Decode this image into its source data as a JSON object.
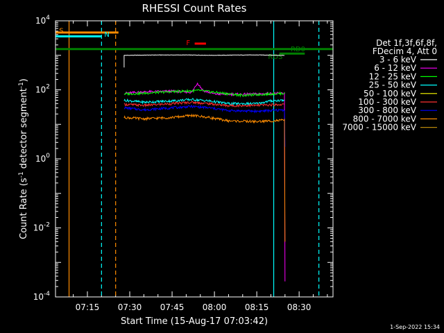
{
  "chart_data": {
    "type": "line",
    "title": "RHESSI Count Rates",
    "xlabel": "Start Time (15-Aug-17 07:03:42)",
    "ylabel_main": "Count Rate (s",
    "ylabel_sup1": "-1",
    "ylabel_mid": " detector segment",
    "ylabel_sup2": "-1",
    "ylabel_end": ")",
    "yscale": "log",
    "ylim_exp": [
      -4,
      4
    ],
    "xlim_min": [
      3.7,
      102
    ],
    "yticks": [
      {
        "exp": 4,
        "label": "10",
        "sup": "4"
      },
      {
        "exp": 2,
        "label": "10",
        "sup": "2"
      },
      {
        "exp": 0,
        "label": "10",
        "sup": "0"
      },
      {
        "exp": -2,
        "label": "10",
        "sup": "-2"
      },
      {
        "exp": -4,
        "label": "10",
        "sup": "-4"
      }
    ],
    "xticks": [
      {
        "min": 15,
        "label": "07:15"
      },
      {
        "min": 30,
        "label": "07:30"
      },
      {
        "min": 45,
        "label": "07:45"
      },
      {
        "min": 60,
        "label": "08:00"
      },
      {
        "min": 75,
        "label": "08:15"
      },
      {
        "min": 90,
        "label": "08:30"
      }
    ],
    "legend": {
      "header1": "Det 1f,3f,6f,8f,",
      "header2": "FDecim 4, Att 0",
      "position": "right"
    },
    "series": [
      {
        "name": "3 - 6 keV",
        "color": "#ffffff",
        "data": [
          [
            28,
            3.0
          ],
          [
            40,
            3.01
          ],
          [
            50,
            3.01
          ],
          [
            60,
            3.0
          ],
          [
            70,
            3.01
          ],
          [
            77,
            3.01
          ],
          [
            84,
            3.0
          ],
          [
            85,
            3.0
          ]
        ],
        "drop_exp": null
      },
      {
        "name": "6 - 12 keV",
        "color": "#ff00ff",
        "data": [
          [
            28,
            1.9
          ],
          [
            35,
            1.94
          ],
          [
            45,
            1.96
          ],
          [
            52,
            1.93
          ],
          [
            54,
            2.2
          ],
          [
            56,
            1.98
          ],
          [
            60,
            1.88
          ],
          [
            70,
            1.87
          ],
          [
            80,
            1.89
          ],
          [
            85,
            1.9
          ]
        ],
        "drop_exp": -3.55
      },
      {
        "name": "12 - 25 keV",
        "color": "#00ff00",
        "data": [
          [
            28,
            1.88
          ],
          [
            35,
            1.9
          ],
          [
            45,
            1.95
          ],
          [
            55,
            1.98
          ],
          [
            60,
            1.93
          ],
          [
            70,
            1.84
          ],
          [
            80,
            1.88
          ],
          [
            85,
            1.9
          ]
        ],
        "drop_exp": null
      },
      {
        "name": "25 - 50 keV",
        "color": "#00ffff",
        "data": [
          [
            28,
            1.7
          ],
          [
            35,
            1.64
          ],
          [
            45,
            1.68
          ],
          [
            52,
            1.72
          ],
          [
            58,
            1.68
          ],
          [
            65,
            1.6
          ],
          [
            75,
            1.6
          ],
          [
            80,
            1.68
          ],
          [
            85,
            1.7
          ]
        ],
        "drop_exp": null
      },
      {
        "name": "50 - 100 keV",
        "color": "#ffff00",
        "data": [],
        "drop_exp": null
      },
      {
        "name": "100 - 300 keV",
        "color": "#ff3030",
        "data": [
          [
            28,
            1.58
          ],
          [
            35,
            1.55
          ],
          [
            45,
            1.6
          ],
          [
            52,
            1.64
          ],
          [
            58,
            1.6
          ],
          [
            65,
            1.54
          ],
          [
            75,
            1.55
          ],
          [
            85,
            1.58
          ]
        ],
        "drop_exp": null
      },
      {
        "name": "300 - 800 keV",
        "color": "#0000ff",
        "data": [
          [
            28,
            1.48
          ],
          [
            35,
            1.42
          ],
          [
            45,
            1.48
          ],
          [
            52,
            1.52
          ],
          [
            58,
            1.48
          ],
          [
            65,
            1.4
          ],
          [
            75,
            1.38
          ],
          [
            85,
            1.42
          ]
        ],
        "drop_exp": 0.35
      },
      {
        "name": "800 - 7000 keV",
        "color": "#ff8c00",
        "data": [
          [
            28,
            1.2
          ],
          [
            35,
            1.16
          ],
          [
            45,
            1.2
          ],
          [
            52,
            1.26
          ],
          [
            58,
            1.2
          ],
          [
            65,
            1.1
          ],
          [
            75,
            1.08
          ],
          [
            85,
            1.12
          ]
        ],
        "drop_exp": -2.4
      },
      {
        "name": "7000 - 15000 keV",
        "color": "#b8860b",
        "data": [],
        "drop_exp": null
      }
    ],
    "flag_bars": [
      {
        "label": "S",
        "color": "#ff8c00",
        "x1": 3.7,
        "x2": 26,
        "y_exp": 3.66,
        "label_min": 5,
        "label_exp": 3.73
      },
      {
        "label": "N",
        "color": "#00ffff",
        "x1": 3.7,
        "x2": 20,
        "y_exp": 3.55,
        "label_min": 21,
        "label_exp": 3.62
      },
      {
        "label": "F",
        "color": "#ff0000",
        "x1": 53,
        "x2": 57,
        "y_exp": 3.34,
        "label_min": 50,
        "label_exp": 3.38
      },
      {
        "label": "RD0",
        "color": "#008000",
        "x1": 3.7,
        "x2": 102,
        "y_exp": 3.18,
        "label_min": 87,
        "label_exp": 3.2
      },
      {
        "label": "RDS",
        "color": "#008000",
        "x1": 83,
        "x2": 92,
        "y_exp": 3.05,
        "label_min": 79,
        "label_exp": 2.97
      }
    ],
    "vertical_lines": [
      {
        "min": 8.5,
        "color": "#ff8c00",
        "style": "solid"
      },
      {
        "min": 20,
        "color": "#00ffff",
        "style": "dashed"
      },
      {
        "min": 25,
        "color": "#ff8c00",
        "style": "dashed"
      },
      {
        "min": 81,
        "color": "#00ffff",
        "style": "solid"
      },
      {
        "min": 97,
        "color": "#00ffff",
        "style": "dashed"
      }
    ],
    "footer": "1-Sep-2022 15:34"
  }
}
